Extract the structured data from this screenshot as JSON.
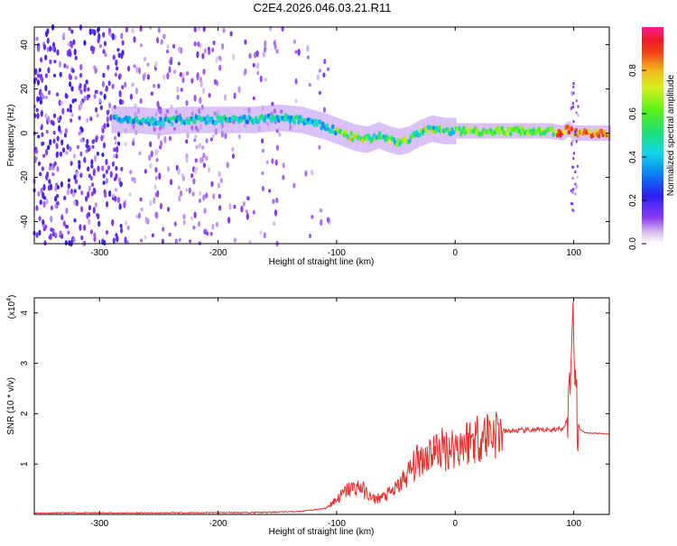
{
  "title": "C2E4.2026.046.03.21.R11",
  "chart_data": [
    {
      "type": "heatmap",
      "xlabel": "Height of straight line (km)",
      "ylabel": "Frequency (Hz)",
      "xlim": [
        -355,
        130
      ],
      "ylim": [
        -50,
        48
      ],
      "xticks": [
        -300,
        -200,
        -100,
        0,
        100
      ],
      "yticks": [
        -40,
        -20,
        0,
        20,
        40
      ],
      "colorbar": {
        "label": "Normalized spectral amplitude",
        "range": [
          0,
          1
        ],
        "ticks": [
          0.0,
          0.2,
          0.4,
          0.6,
          0.8
        ]
      },
      "ridge": {
        "x": [
          -285,
          -270,
          -250,
          -230,
          -210,
          -190,
          -170,
          -150,
          -130,
          -110,
          -95,
          -85,
          -75,
          -65,
          -55,
          -48,
          -40,
          -30,
          -20,
          -10,
          0,
          20,
          40,
          60,
          80,
          90,
          95,
          100,
          105,
          110,
          130
        ],
        "y": [
          6,
          6,
          5,
          6,
          6,
          6,
          6,
          7,
          6,
          3,
          0,
          -2,
          -3,
          -1,
          -3,
          -4,
          -3,
          0,
          2,
          1,
          1,
          1,
          1,
          1,
          1,
          0,
          2,
          0,
          0,
          0,
          0
        ]
      },
      "grid": false
    },
    {
      "type": "line",
      "xlabel": "Height of straight line (km)",
      "ylabel": "SNR (10 * v/v)",
      "y_multiplier": "(x10",
      "y_multiplier_exp": "4",
      "xlim": [
        -355,
        130
      ],
      "ylim": [
        0,
        4.3
      ],
      "xticks": [
        -300,
        -200,
        -100,
        0,
        100
      ],
      "yticks": [
        1,
        2,
        3,
        4
      ],
      "color": "#e8312f",
      "series": [
        {
          "x": [
            -355,
            -250,
            -160,
            -130,
            -110,
            -100,
            -90,
            -80,
            -70,
            -60,
            -50,
            -40,
            -30,
            -20,
            -10,
            0,
            10,
            20,
            30,
            40,
            60,
            80,
            90,
            95,
            98,
            100,
            102,
            105,
            110,
            130
          ],
          "y": [
            0.03,
            0.03,
            0.04,
            0.06,
            0.12,
            0.3,
            0.5,
            0.55,
            0.3,
            0.35,
            0.5,
            0.8,
            1.1,
            1.25,
            1.3,
            1.35,
            1.45,
            1.55,
            1.62,
            1.65,
            1.67,
            1.68,
            1.7,
            1.9,
            3.4,
            4.2,
            2.0,
            1.7,
            1.62,
            1.6
          ]
        }
      ],
      "grid": false
    }
  ]
}
